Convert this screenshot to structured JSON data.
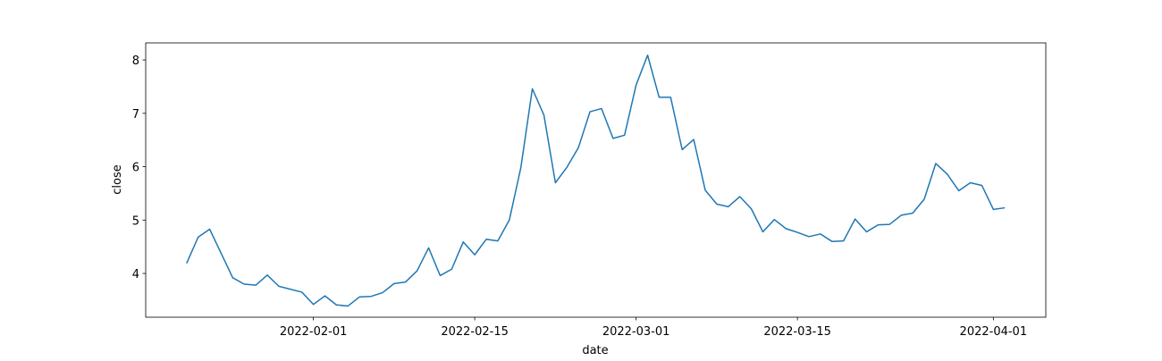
{
  "chart_data": {
    "type": "line",
    "xlabel": "date",
    "ylabel": "close",
    "x": [
      "2022-01-21",
      "2022-01-22",
      "2022-01-23",
      "2022-01-25",
      "2022-01-26",
      "2022-01-27",
      "2022-01-28",
      "2022-01-29",
      "2022-01-31",
      "2022-02-01",
      "2022-02-02",
      "2022-02-03",
      "2022-02-04",
      "2022-02-05",
      "2022-02-06",
      "2022-02-07",
      "2022-02-08",
      "2022-02-09",
      "2022-02-10",
      "2022-02-11",
      "2022-02-12",
      "2022-02-13",
      "2022-02-14",
      "2022-02-15",
      "2022-02-16",
      "2022-02-17",
      "2022-02-18",
      "2022-02-19",
      "2022-02-20",
      "2022-02-21",
      "2022-02-22",
      "2022-02-23",
      "2022-02-24",
      "2022-02-25",
      "2022-02-26",
      "2022-02-27",
      "2022-02-28",
      "2022-03-01",
      "2022-03-02",
      "2022-03-03",
      "2022-03-04",
      "2022-03-05",
      "2022-03-06",
      "2022-03-07",
      "2022-03-08",
      "2022-03-09",
      "2022-03-10",
      "2022-03-11",
      "2022-03-12",
      "2022-03-13",
      "2022-03-14",
      "2022-03-15",
      "2022-03-16",
      "2022-03-17",
      "2022-03-18",
      "2022-03-19",
      "2022-03-20",
      "2022-03-21",
      "2022-03-22",
      "2022-03-23",
      "2022-03-24",
      "2022-03-25",
      "2022-03-26",
      "2022-03-27",
      "2022-03-28",
      "2022-03-29",
      "2022-03-30",
      "2022-03-31",
      "2022-04-01",
      "2022-04-02"
    ],
    "series": [
      {
        "name": "close",
        "color": "#1f77b4",
        "values": [
          4.19,
          4.68,
          4.83,
          3.92,
          3.8,
          3.78,
          3.97,
          3.76,
          3.65,
          3.42,
          3.58,
          3.41,
          3.39,
          3.56,
          3.57,
          3.64,
          3.81,
          3.84,
          4.05,
          4.48,
          3.96,
          4.08,
          4.59,
          4.35,
          4.64,
          4.61,
          5.0,
          5.98,
          7.46,
          6.97,
          5.7,
          5.99,
          6.36,
          7.03,
          7.09,
          6.53,
          6.59,
          7.53,
          8.09,
          7.3,
          7.3,
          6.32,
          6.51,
          5.56,
          5.3,
          5.25,
          5.44,
          5.21,
          4.78,
          5.01,
          4.84,
          4.77,
          4.69,
          4.74,
          4.6,
          4.61,
          5.02,
          4.78,
          4.91,
          4.92,
          5.09,
          5.13,
          5.39,
          6.06,
          5.86,
          5.55,
          5.7,
          5.65,
          5.2,
          5.23
        ]
      }
    ],
    "xlim": [
      "2022-01-17T10:48:00Z",
      "2022-04-05T13:12:00Z"
    ],
    "xticks": [
      "2022-02-01",
      "2022-02-15",
      "2022-03-01",
      "2022-03-15",
      "2022-04-01"
    ],
    "ylim": [
      3.18,
      8.32
    ],
    "yticks": [
      4,
      5,
      6,
      7,
      8
    ]
  }
}
